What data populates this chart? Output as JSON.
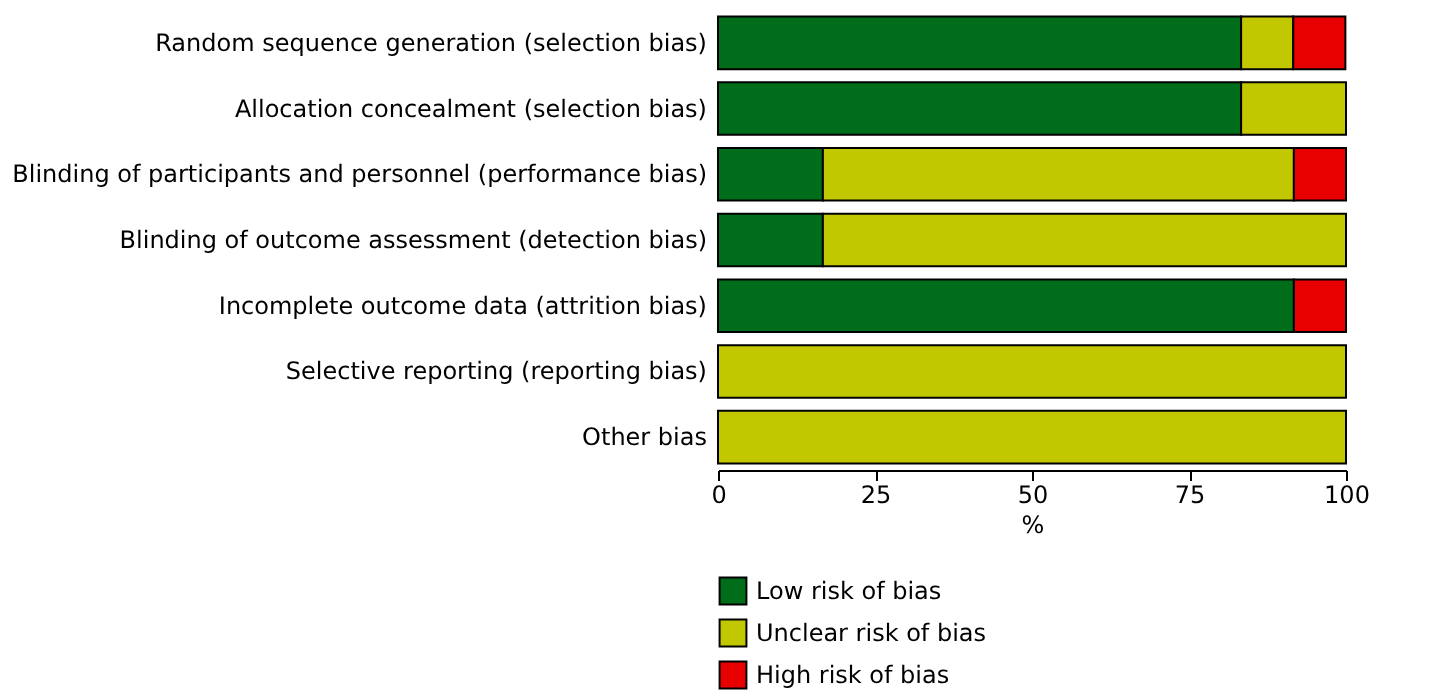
{
  "chart_data": {
    "type": "bar",
    "orientation": "horizontal",
    "stacked": true,
    "categories": [
      "Random sequence generation (selection bias)",
      "Allocation concealment (selection bias)",
      "Blinding of participants and personnel (performance bias)",
      "Blinding of outcome assessment (detection bias)",
      "Incomplete outcome data (attrition bias)",
      "Selective reporting (reporting bias)",
      "Other bias"
    ],
    "series": [
      {
        "name": "Low risk of bias",
        "color": "#006d1a",
        "values": [
          83.3,
          83.3,
          16.7,
          16.7,
          91.7,
          0,
          0
        ]
      },
      {
        "name": "Unclear risk of bias",
        "color": "#c2c800",
        "values": [
          8.3,
          16.7,
          75,
          83.3,
          0,
          100,
          100
        ]
      },
      {
        "name": "High risk of bias",
        "color": "#e80000",
        "values": [
          8.3,
          0,
          8.3,
          0,
          8.3,
          0,
          0
        ]
      }
    ],
    "xlabel": "%",
    "xlim": [
      0,
      100
    ],
    "xticks": [
      0,
      25,
      50,
      75,
      100
    ],
    "grid": false,
    "legend": "bottom"
  }
}
